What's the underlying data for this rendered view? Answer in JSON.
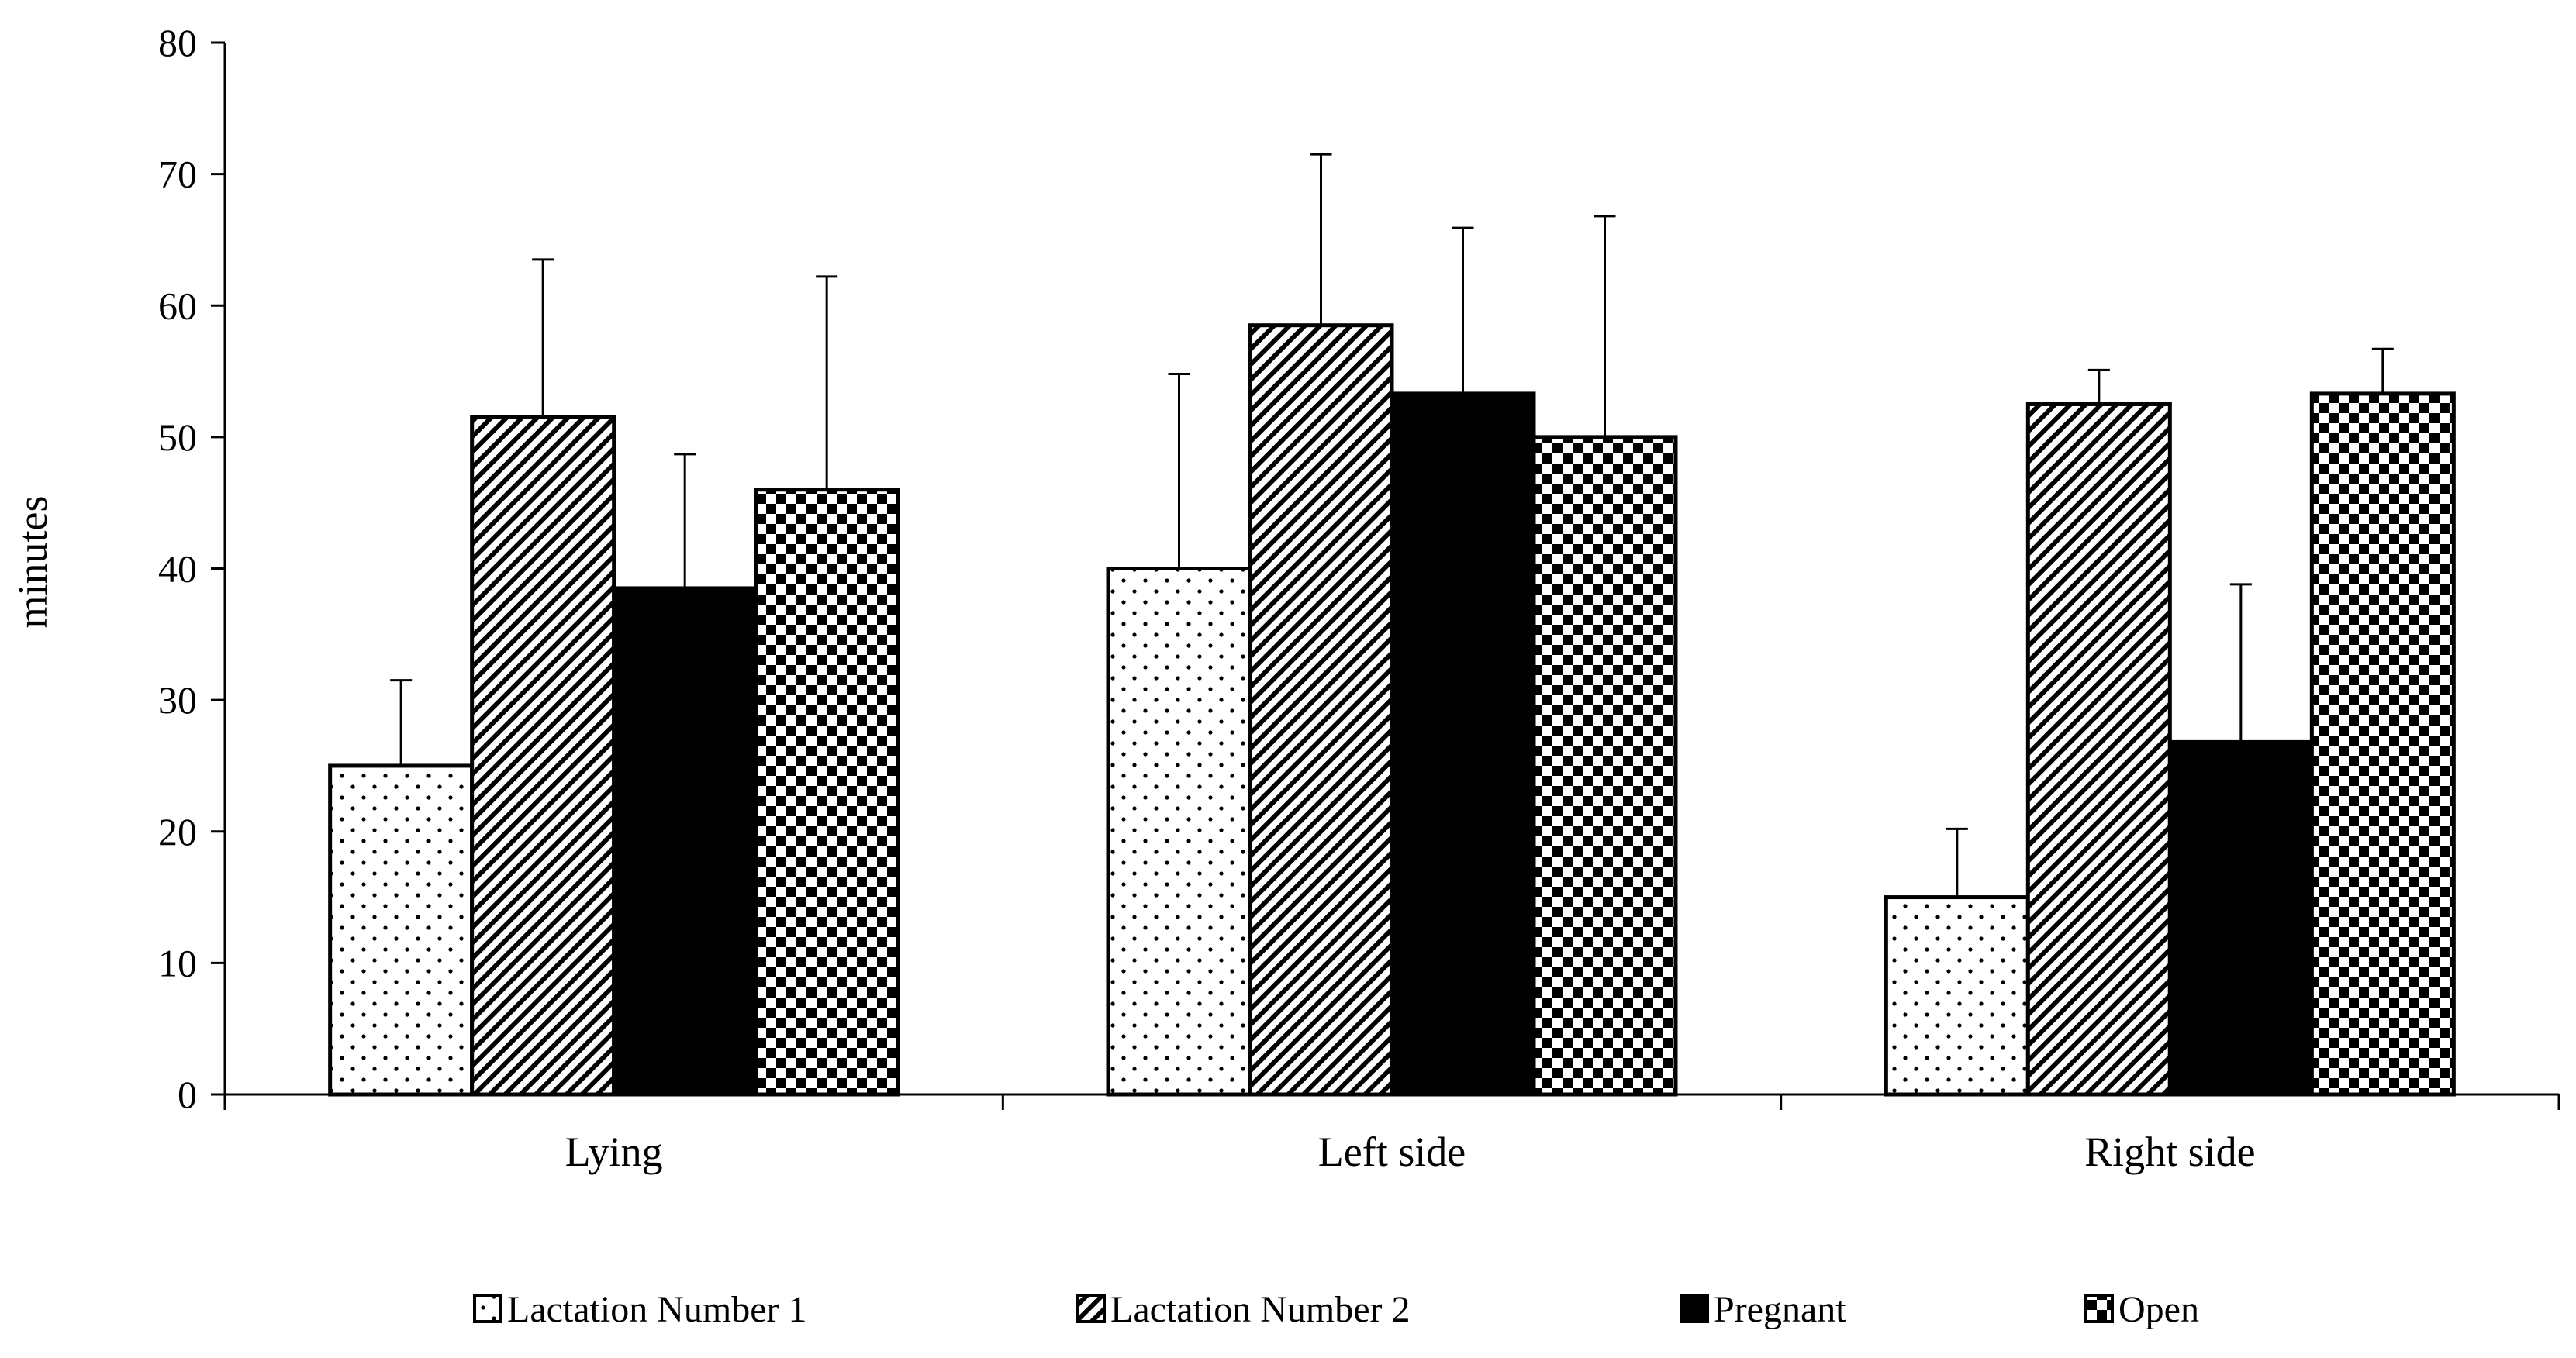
{
  "chart_data": {
    "type": "bar",
    "title": "",
    "xlabel": "",
    "ylabel": "minutes",
    "ylim": [
      0,
      80
    ],
    "yticks": [
      "0",
      "10",
      "20",
      "30",
      "40",
      "50",
      "60",
      "70",
      "80"
    ],
    "categories": [
      "Lying",
      "Left side",
      "Right side"
    ],
    "series": [
      {
        "name": "Lactation Number 1",
        "pattern": "dots",
        "values": [
          25,
          40,
          15
        ],
        "errors": [
          6.5,
          14.8,
          5.2
        ]
      },
      {
        "name": "Lactation Number 2",
        "pattern": "diagonal",
        "values": [
          51.5,
          58.5,
          52.5
        ],
        "errors": [
          12,
          13,
          2.6
        ]
      },
      {
        "name": "Pregnant",
        "pattern": "solid",
        "values": [
          38.5,
          53.3,
          26.8
        ],
        "errors": [
          10.2,
          12.6,
          12
        ]
      },
      {
        "name": "Open",
        "pattern": "checker",
        "values": [
          46,
          50,
          53.3
        ],
        "errors": [
          16.2,
          16.8,
          3.4
        ]
      }
    ],
    "legend_position": "bottom",
    "grid": false,
    "error_bars": "positive"
  },
  "colors": {
    "ink": "#000000",
    "background": "#ffffff"
  }
}
